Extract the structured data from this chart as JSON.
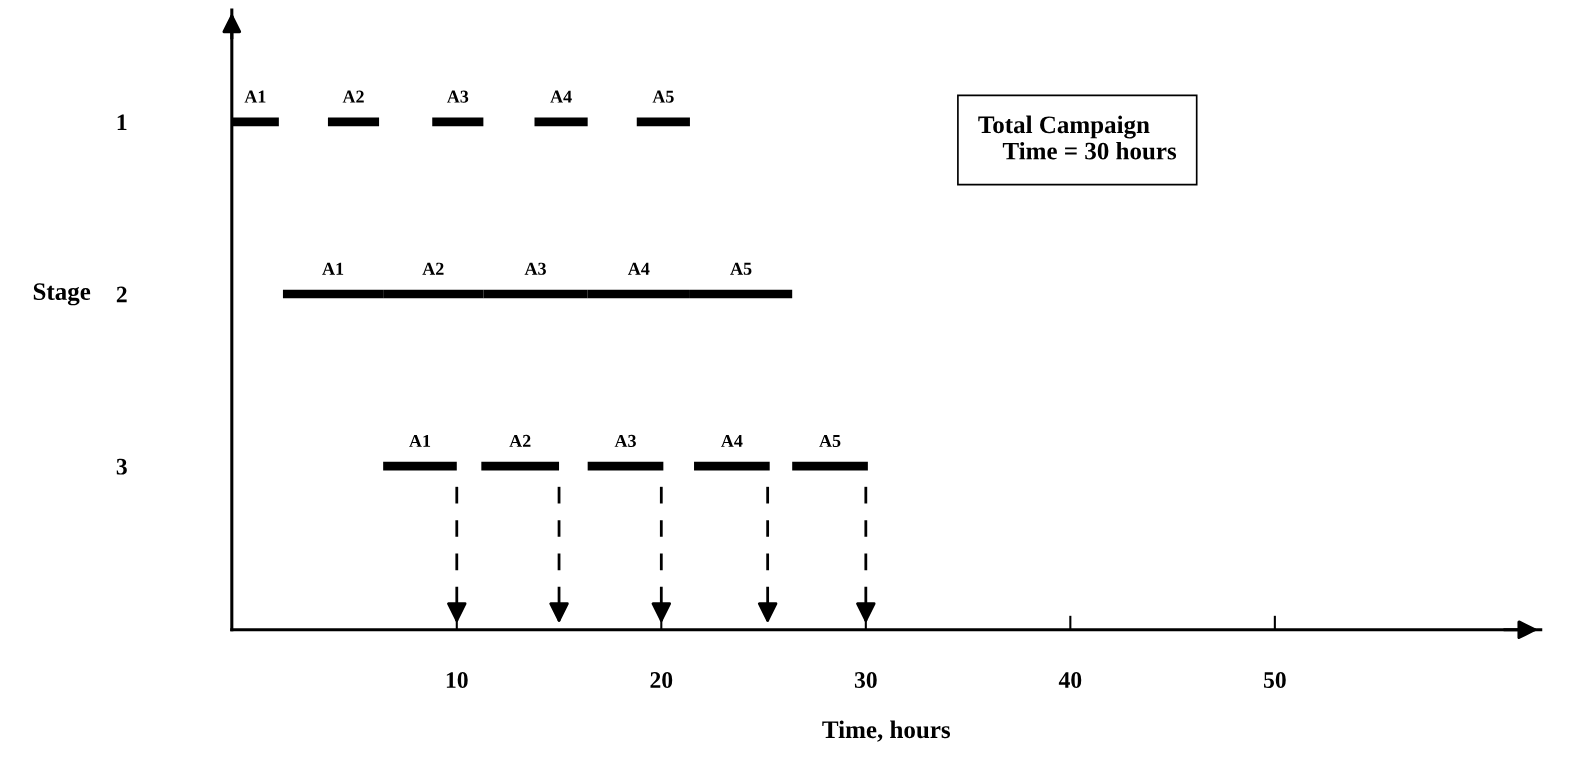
{
  "chart_data": {
    "type": "bar",
    "orientation": "horizontal",
    "stacked": false,
    "categories": [
      "1",
      "2",
      "3"
    ],
    "series": [
      {
        "name": "A1",
        "color": "#000000",
        "base": [
          -1,
          1.5,
          6.4
        ],
        "values": [
          2.3,
          4.9,
          3.6
        ]
      },
      {
        "name": "A2",
        "color": "#000000",
        "base": [
          3.7,
          6.4,
          11.2
        ],
        "values": [
          2.5,
          4.9,
          3.8
        ]
      },
      {
        "name": "A3",
        "color": "#000000",
        "base": [
          8.8,
          11.3,
          16.4
        ],
        "values": [
          2.5,
          5.1,
          3.7
        ]
      },
      {
        "name": "A4",
        "color": "#000000",
        "base": [
          13.8,
          16.4,
          21.6
        ],
        "values": [
          2.6,
          5.0,
          3.7
        ]
      },
      {
        "name": "A5",
        "color": "#000000",
        "base": [
          18.8,
          21.4,
          26.4
        ],
        "values": [
          2.6,
          5.0,
          3.7
        ]
      }
    ],
    "xlabel": "Time, hours",
    "ylabel": "Stage",
    "xlim": [
      -1,
      63
    ],
    "xticks": [
      10,
      20,
      30,
      40,
      50
    ],
    "ref_lines": [
      {
        "axis": "x",
        "value": 10,
        "color": "#000000",
        "line_style": "dashed"
      },
      {
        "axis": "x",
        "value": 15,
        "color": "#000000",
        "line_style": "dashed"
      },
      {
        "axis": "x",
        "value": 20,
        "color": "#000000",
        "line_style": "dashed"
      },
      {
        "axis": "x",
        "value": 25.2,
        "color": "#000000",
        "line_style": "dashed"
      },
      {
        "axis": "x",
        "value": 30,
        "color": "#000000",
        "line_style": "dashed"
      }
    ],
    "annotations": [
      "Total Campaign\n    Time = 30 hours"
    ],
    "grid": false,
    "legend": false
  }
}
